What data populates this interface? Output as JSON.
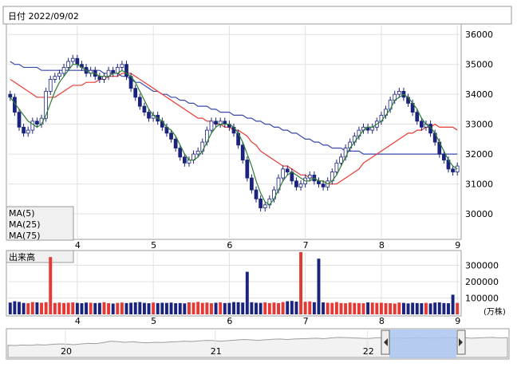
{
  "header": {
    "date_label": "日付 2022/09/02"
  },
  "legend": [
    {
      "label": "MA(5)",
      "color": "#2e7d32"
    },
    {
      "label": "MA(25)",
      "color": "#e53935"
    },
    {
      "label": "MA(75)",
      "color": "#3949ab"
    }
  ],
  "volume_panel": {
    "title": "出来高",
    "unit": "(万株)"
  },
  "chart_data": [
    {
      "type": "candlestick",
      "title": "",
      "x_ticks": [
        "4",
        "5",
        "6",
        "7",
        "8",
        "9"
      ],
      "y_ticks": [
        30000,
        31000,
        32000,
        33000,
        34000,
        35000,
        36000
      ],
      "ylim": [
        29200,
        36300
      ],
      "grid": true,
      "up_color": "#ffffff",
      "down_color": "#1a237e",
      "sessions_per_day": 25,
      "day_offsets": {
        "first_tick_index": 20
      },
      "close": [
        33900,
        33400,
        32900,
        32700,
        32800,
        33100,
        33000,
        33200,
        34100,
        34500,
        34600,
        34700,
        34900,
        35100,
        35200,
        35000,
        34900,
        34700,
        34800,
        34600,
        34500,
        34600,
        34800,
        34700,
        34900,
        35000,
        34600,
        34200,
        33900,
        33600,
        33400,
        33200,
        33300,
        33100,
        32900,
        32700,
        32500,
        32200,
        31900,
        31700,
        31800,
        32000,
        32100,
        32400,
        32800,
        33100,
        33000,
        33100,
        33000,
        32900,
        32700,
        32300,
        31800,
        31200,
        30800,
        30500,
        30200,
        30300,
        30500,
        30800,
        31200,
        31500,
        31400,
        31100,
        30900,
        31000,
        31200,
        31300,
        31100,
        31000,
        30900,
        31100,
        31400,
        31700,
        31900,
        32200,
        32400,
        32600,
        32800,
        32900,
        32800,
        32900,
        33100,
        33300,
        33500,
        33800,
        34000,
        34100,
        33900,
        33700,
        33400,
        33100,
        32900,
        33000,
        32700,
        32400,
        32000,
        31800,
        31500,
        31400,
        31600
      ],
      "open": [
        34000,
        33900,
        33400,
        32900,
        32700,
        32800,
        33100,
        33000,
        33200,
        34100,
        34500,
        34600,
        34700,
        34900,
        35100,
        35200,
        35000,
        34900,
        34700,
        34800,
        34600,
        34500,
        34600,
        34800,
        34700,
        34900,
        35000,
        34600,
        34200,
        33900,
        33600,
        33400,
        33200,
        33300,
        33100,
        32900,
        32700,
        32500,
        32200,
        31900,
        31700,
        31800,
        32000,
        32100,
        32400,
        32800,
        33100,
        33000,
        33100,
        33000,
        32900,
        32700,
        32300,
        31800,
        31200,
        30800,
        30500,
        30200,
        30300,
        30500,
        30800,
        31200,
        31500,
        31400,
        31100,
        30900,
        31000,
        31200,
        31300,
        31100,
        31000,
        30900,
        31100,
        31400,
        31700,
        31900,
        32200,
        32400,
        32600,
        32800,
        32900,
        32800,
        32900,
        33100,
        33300,
        33500,
        33800,
        34000,
        34100,
        33900,
        33700,
        33400,
        33100,
        32900,
        33000,
        32700,
        32400,
        32000,
        31800,
        31500,
        31400
      ],
      "ma5": [
        33900,
        33700,
        33500,
        33300,
        33100,
        33000,
        32900,
        33000,
        33300,
        33700,
        34100,
        34400,
        34600,
        34800,
        35000,
        35000,
        34900,
        34800,
        34700,
        34700,
        34600,
        34600,
        34600,
        34700,
        34700,
        34800,
        34700,
        34600,
        34400,
        34100,
        33800,
        33500,
        33300,
        33200,
        33100,
        32900,
        32800,
        32600,
        32300,
        32000,
        31800,
        31800,
        31900,
        32100,
        32400,
        32700,
        32900,
        33000,
        33000,
        33000,
        32900,
        32700,
        32400,
        32000,
        31600,
        31100,
        30700,
        30400,
        30300,
        30500,
        30800,
        31100,
        31300,
        31400,
        31300,
        31200,
        31100,
        31100,
        31200,
        31100,
        31100,
        31000,
        31100,
        31300,
        31600,
        31900,
        32200,
        32400,
        32600,
        32800,
        32900,
        32900,
        33000,
        33100,
        33300,
        33500,
        33800,
        33900,
        34000,
        33900,
        33700,
        33500,
        33200,
        33000,
        32900,
        32700,
        32400,
        32100,
        31800,
        31600,
        31500
      ],
      "ma25": [
        34500,
        34400,
        34300,
        34200,
        34100,
        34000,
        33900,
        33900,
        33900,
        33900,
        33900,
        34000,
        34100,
        34200,
        34300,
        34300,
        34300,
        34400,
        34400,
        34400,
        34500,
        34500,
        34600,
        34600,
        34600,
        34700,
        34700,
        34700,
        34600,
        34500,
        34400,
        34300,
        34200,
        34100,
        34000,
        33900,
        33800,
        33700,
        33600,
        33500,
        33400,
        33300,
        33200,
        33200,
        33100,
        33100,
        33000,
        33000,
        32900,
        32900,
        32800,
        32800,
        32700,
        32600,
        32400,
        32300,
        32100,
        32000,
        31900,
        31800,
        31700,
        31600,
        31600,
        31500,
        31400,
        31300,
        31300,
        31200,
        31200,
        31100,
        31100,
        31000,
        31000,
        31000,
        31100,
        31200,
        31300,
        31400,
        31500,
        31700,
        31800,
        31900,
        32000,
        32100,
        32200,
        32300,
        32400,
        32500,
        32600,
        32700,
        32700,
        32800,
        32800,
        32900,
        32900,
        33000,
        32900,
        32900,
        32900,
        32900,
        32800
      ],
      "ma75": [
        35100,
        35000,
        35000,
        34900,
        34900,
        34900,
        34900,
        34800,
        34800,
        34800,
        34800,
        34800,
        34800,
        34800,
        34800,
        34800,
        34800,
        34800,
        34800,
        34800,
        34800,
        34700,
        34700,
        34700,
        34700,
        34600,
        34600,
        34500,
        34400,
        34400,
        34300,
        34200,
        34100,
        34100,
        34000,
        34000,
        33900,
        33900,
        33800,
        33800,
        33700,
        33700,
        33600,
        33600,
        33600,
        33500,
        33500,
        33400,
        33400,
        33400,
        33300,
        33300,
        33300,
        33200,
        33200,
        33100,
        33100,
        33000,
        33000,
        32900,
        32900,
        32800,
        32800,
        32700,
        32700,
        32600,
        32500,
        32500,
        32400,
        32400,
        32300,
        32300,
        32200,
        32200,
        32200,
        32100,
        32100,
        32100,
        32100,
        32000,
        32000,
        32000,
        32000,
        32000,
        32000,
        32000,
        32000,
        32000,
        32000,
        32000,
        32000,
        32000,
        32000,
        32000,
        32000,
        32000,
        32000,
        32000,
        32000,
        32000,
        32000
      ]
    },
    {
      "type": "bar",
      "title": "出来高",
      "y_ticks": [
        100000,
        200000,
        300000
      ],
      "ylim": [
        0,
        380000
      ],
      "unit": "(万株)",
      "values": [
        72000,
        80000,
        76000,
        70000,
        68000,
        75000,
        73000,
        71000,
        74000,
        350000,
        70000,
        72000,
        69000,
        71000,
        73000,
        70000,
        68000,
        72000,
        71000,
        69000,
        70000,
        74000,
        68000,
        66000,
        70000,
        72000,
        69000,
        71000,
        73000,
        75000,
        70000,
        68000,
        72000,
        69000,
        71000,
        70000,
        72000,
        68000,
        69000,
        67000,
        73000,
        72000,
        76000,
        70000,
        72000,
        68000,
        71000,
        73000,
        69000,
        70000,
        75000,
        74000,
        72000,
        260000,
        74000,
        71000,
        70000,
        73000,
        69000,
        72000,
        69000,
        75000,
        80000,
        82000,
        78000,
        380000,
        77000,
        79000,
        74000,
        340000,
        73000,
        71000,
        70000,
        75000,
        69000,
        68000,
        72000,
        70000,
        69000,
        68000,
        73000,
        72000,
        70000,
        71000,
        69000,
        68000,
        66000,
        72000,
        70000,
        67000,
        71000,
        69000,
        68000,
        70000,
        67000,
        72000,
        73000,
        69000,
        68000,
        120000,
        70000
      ],
      "colors_up": "#e53935",
      "colors_down": "#1a237e"
    },
    {
      "type": "area",
      "title": "",
      "x_ticks": [
        "20",
        "21",
        "22"
      ],
      "values": [
        0.45,
        0.44,
        0.46,
        0.45,
        0.47,
        0.46,
        0.48,
        0.5,
        0.49,
        0.47,
        0.5,
        0.52,
        0.51,
        0.55,
        0.6,
        0.58,
        0.56,
        0.58,
        0.55,
        0.54,
        0.56,
        0.55,
        0.57,
        0.58,
        0.6,
        0.59,
        0.61,
        0.63,
        0.62,
        0.6,
        0.62,
        0.64,
        0.66,
        0.65,
        0.63,
        0.65,
        0.67,
        0.68,
        0.66,
        0.68,
        0.69,
        0.7,
        0.71,
        0.69,
        0.72,
        0.74,
        0.73,
        0.72,
        0.71,
        0.7,
        0.72,
        0.73,
        0.71,
        0.72,
        0.7,
        0.72,
        0.73,
        0.72,
        0.71,
        0.72,
        0.74,
        0.72,
        0.73,
        0.71,
        0.72,
        0.73,
        0.74,
        0.72,
        0.73
      ],
      "selection": [
        0.88,
        1.0
      ]
    }
  ]
}
